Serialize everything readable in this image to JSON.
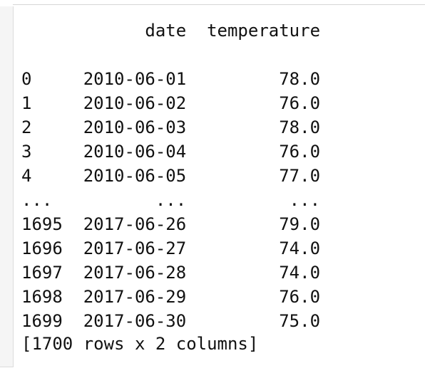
{
  "table": {
    "columns": [
      "date",
      "temperature"
    ],
    "rows": [
      {
        "index": "0",
        "date": "2010-06-01",
        "temperature": "78.0"
      },
      {
        "index": "1",
        "date": "2010-06-02",
        "temperature": "76.0"
      },
      {
        "index": "2",
        "date": "2010-06-03",
        "temperature": "78.0"
      },
      {
        "index": "3",
        "date": "2010-06-04",
        "temperature": "76.0"
      },
      {
        "index": "4",
        "date": "2010-06-05",
        "temperature": "77.0"
      },
      {
        "index": "...",
        "date": "...",
        "temperature": "..."
      },
      {
        "index": "1695",
        "date": "2017-06-26",
        "temperature": "79.0"
      },
      {
        "index": "1696",
        "date": "2017-06-27",
        "temperature": "74.0"
      },
      {
        "index": "1697",
        "date": "2017-06-28",
        "temperature": "74.0"
      },
      {
        "index": "1698",
        "date": "2017-06-29",
        "temperature": "76.0"
      },
      {
        "index": "1699",
        "date": "2017-06-30",
        "temperature": "75.0"
      }
    ]
  },
  "summary": "[1700 rows x 2 columns]"
}
